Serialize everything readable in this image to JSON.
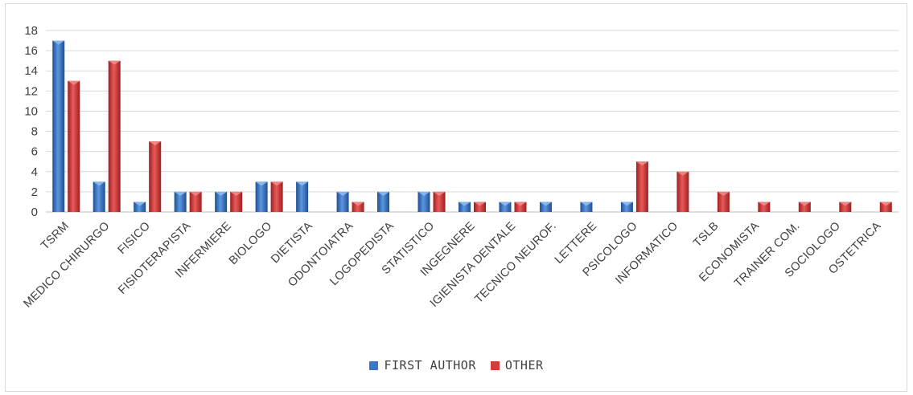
{
  "chart_data": {
    "type": "bar",
    "categories": [
      "TSRM",
      "MEDICO CHIRURGO",
      "FISICO",
      "FISIOTERAPISTA",
      "INFERMIERE",
      "BIOLOGO",
      "DIETISTA",
      "ODONTOIATRA",
      "LOGOPEDISTA",
      "STATISTICO",
      "INGEGNERE",
      "IGIENISTA DENTALE",
      "TECNICO NEUROF.",
      "LETTERE",
      "PSICOLOGO",
      "INFORMATICO",
      "TSLB",
      "ECONOMISTA",
      "TRAINER COM.",
      "SOCIOLOGO",
      "OSTETRICA"
    ],
    "series": [
      {
        "name": "FIRST AUTHOR",
        "color": "#3a78c9",
        "values": [
          17,
          3,
          1,
          2,
          2,
          3,
          3,
          2,
          2,
          2,
          1,
          1,
          1,
          1,
          1,
          0,
          0,
          0,
          0,
          0,
          0
        ]
      },
      {
        "name": "OTHER",
        "color": "#d63b3b",
        "values": [
          13,
          15,
          7,
          2,
          2,
          3,
          0,
          1,
          0,
          2,
          1,
          1,
          0,
          0,
          5,
          4,
          2,
          1,
          1,
          1,
          1
        ]
      }
    ],
    "ylim": [
      0,
      18
    ],
    "yticks": [
      0,
      2,
      4,
      6,
      8,
      10,
      12,
      14,
      16,
      18
    ],
    "grid": true,
    "legend_position": "bottom"
  }
}
